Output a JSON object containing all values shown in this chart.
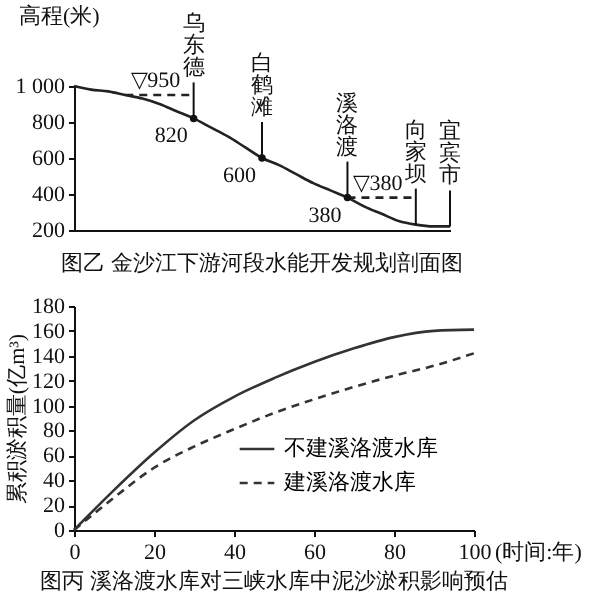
{
  "chart_data": [
    {
      "type": "line",
      "title": "图乙 金沙江下游河段水能开发规划剖面图",
      "ylabel": "高程(米)",
      "categories": [
        null,
        null,
        null,
        null,
        null,
        null,
        null,
        "乌东德",
        null,
        null,
        null,
        "白鹤滩",
        null,
        null,
        null,
        null,
        "溪洛渡",
        null,
        null,
        null,
        "向家坝",
        null,
        "宜宾市"
      ],
      "ylim": [
        200,
        1000
      ],
      "yticks": [
        200,
        400,
        600,
        800,
        {
          "value": 1000,
          "label": "1 000"
        }
      ],
      "series": [
        {
          "color": "#222222",
          "line_style": "solid",
          "values": [
            1000,
            980,
            970,
            950,
            930,
            900,
            860,
            820,
            770,
            720,
            660,
            600,
            560,
            510,
            460,
            420,
            380,
            330,
            290,
            250,
            230,
            220,
            220
          ]
        },
        {
          "color": "#222222",
          "line_style": "dashed",
          "values": [
            null,
            null,
            null,
            950,
            950,
            950,
            950,
            950,
            null,
            null,
            null,
            null,
            null,
            null,
            null,
            null,
            null,
            null,
            null,
            null,
            null,
            null,
            null
          ],
          "value_labels": [
            null,
            null,
            null,
            "▽950",
            null,
            null,
            null,
            null,
            null,
            null,
            null,
            null,
            null,
            null,
            null,
            null,
            null,
            null,
            null,
            null,
            null,
            null,
            null
          ]
        },
        {
          "color": "#222222",
          "line_style": "dashed",
          "values": [
            null,
            null,
            null,
            null,
            null,
            null,
            null,
            null,
            null,
            null,
            null,
            null,
            null,
            null,
            null,
            null,
            380,
            380,
            380,
            380,
            380,
            null,
            null
          ],
          "value_labels": [
            null,
            null,
            null,
            null,
            null,
            null,
            null,
            null,
            null,
            null,
            null,
            null,
            null,
            null,
            null,
            null,
            "▽380",
            null,
            null,
            null,
            null,
            null,
            null
          ]
        }
      ],
      "annotations": [
        {
          "text": "820",
          "x": "乌东德",
          "y": 820
        },
        {
          "text": "600",
          "x": "白鹤滩",
          "y": 600
        },
        {
          "text": "380",
          "x": "溪洛渡",
          "y": 380
        }
      ]
    },
    {
      "type": "line",
      "title": "图丙 溪洛渡水库对三峡水库中泥沙淤积影响预估",
      "ylabel": "累积淤积量(亿m³)",
      "x": [
        0,
        10,
        20,
        30,
        40,
        50,
        60,
        70,
        80,
        90,
        100
      ],
      "xlim": [
        0,
        100
      ],
      "xlabel": "(时间:年)",
      "xticks": [
        0,
        20,
        40,
        60,
        80,
        100
      ],
      "ylim": [
        0,
        180
      ],
      "yticks": [
        0,
        20,
        40,
        60,
        80,
        100,
        120,
        140,
        160,
        180
      ],
      "legend": "bottom right",
      "series": [
        {
          "name": "不建溪洛渡水库",
          "color": "#333333",
          "line_style": "solid",
          "values": [
            0,
            32,
            62,
            88,
            107,
            122,
            135,
            146,
            155,
            160,
            161
          ]
        },
        {
          "name": "建溪洛渡水库",
          "color": "#333333",
          "line_style": "dashed",
          "values": [
            0,
            26,
            50,
            67,
            81,
            94,
            105,
            115,
            124,
            132,
            142
          ]
        }
      ]
    }
  ]
}
